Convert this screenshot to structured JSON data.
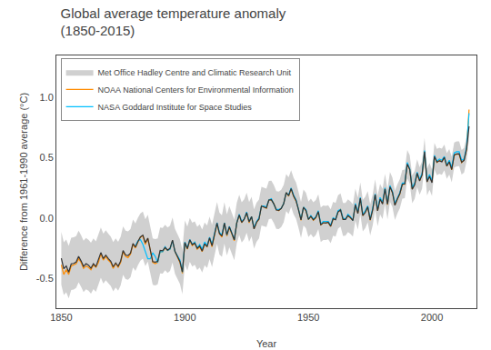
{
  "chart_data": {
    "type": "line",
    "title": "Global average temperature anomaly\n(1850-2015)",
    "xlabel": "Year",
    "ylabel": "Difference from 1961-1990 average (°C)",
    "xlim": [
      1848,
      2018
    ],
    "ylim": [
      -0.75,
      1.35
    ],
    "xticks": [
      1850,
      1900,
      1950,
      2000
    ],
    "yticks": [
      -0.5,
      {
        "value": 0.0,
        "label": "0.0"
      },
      0.5,
      {
        "value": 1.0,
        "label": "1.0"
      }
    ],
    "grid": false,
    "legend": "upper left",
    "x": [
      1850,
      1851,
      1852,
      1853,
      1854,
      1855,
      1856,
      1857,
      1858,
      1859,
      1860,
      1861,
      1862,
      1863,
      1864,
      1865,
      1866,
      1867,
      1868,
      1869,
      1870,
      1871,
      1872,
      1873,
      1874,
      1875,
      1876,
      1877,
      1878,
      1879,
      1880,
      1881,
      1882,
      1883,
      1884,
      1885,
      1886,
      1887,
      1888,
      1889,
      1890,
      1891,
      1892,
      1893,
      1894,
      1895,
      1896,
      1897,
      1898,
      1899,
      1900,
      1901,
      1902,
      1903,
      1904,
      1905,
      1906,
      1907,
      1908,
      1909,
      1910,
      1911,
      1912,
      1913,
      1914,
      1915,
      1916,
      1917,
      1918,
      1919,
      1920,
      1921,
      1922,
      1923,
      1924,
      1925,
      1926,
      1927,
      1928,
      1929,
      1930,
      1931,
      1932,
      1933,
      1934,
      1935,
      1936,
      1937,
      1938,
      1939,
      1940,
      1941,
      1942,
      1943,
      1944,
      1945,
      1946,
      1947,
      1948,
      1949,
      1950,
      1951,
      1952,
      1953,
      1954,
      1955,
      1956,
      1957,
      1958,
      1959,
      1960,
      1961,
      1962,
      1963,
      1964,
      1965,
      1966,
      1967,
      1968,
      1969,
      1970,
      1971,
      1972,
      1973,
      1974,
      1975,
      1976,
      1977,
      1978,
      1979,
      1980,
      1981,
      1982,
      1983,
      1984,
      1985,
      1986,
      1987,
      1988,
      1989,
      1990,
      1991,
      1992,
      1993,
      1994,
      1995,
      1996,
      1997,
      1998,
      1999,
      2000,
      2001,
      2002,
      2003,
      2004,
      2005,
      2006,
      2007,
      2008,
      2009,
      2010,
      2011,
      2012,
      2013,
      2014,
      2015
    ],
    "series": [
      {
        "name": "Met Office Hadley Centre and Climatic Research Unit",
        "type": "band",
        "color": "#AAAAAA",
        "lower": [
          -0.556,
          -0.6413,
          -0.6175,
          -0.6688,
          -0.5991,
          -0.5944,
          -0.5826,
          -0.5349,
          -0.5722,
          -0.6165,
          -0.5927,
          -0.605,
          -0.6293,
          -0.5915,
          -0.6148,
          -0.5601,
          -0.4964,
          -0.5456,
          -0.5169,
          -0.5432,
          -0.5655,
          -0.6107,
          -0.578,
          -0.6043,
          -0.5615,
          -0.4728,
          -0.5091,
          -0.5134,
          -0.4926,
          -0.4119,
          -0.4412,
          -0.3935,
          -0.3557,
          -0.339,
          -0.4013,
          -0.3625,
          -0.4518,
          -0.5561,
          -0.5604,
          -0.5526,
          -0.4609,
          -0.4632,
          -0.4355,
          -0.4567,
          -0.44,
          -0.3713,
          -0.4645,
          -0.5068,
          -0.5471,
          -0.6334,
          -0.3876,
          -0.4379,
          -0.3642,
          -0.4035,
          -0.3897,
          -0.433,
          -0.4123,
          -0.4535,
          -0.3928,
          -0.4161,
          -0.3414,
          -0.4076,
          -0.3159,
          -0.2162,
          -0.3035,
          -0.3237,
          -0.214,
          -0.3123,
          -0.2435,
          -0.3038,
          -0.3511,
          -0.2114,
          -0.1426,
          -0.2039,
          -0.1772,
          -0.1225,
          -0.1977,
          -0.153,
          -0.2543,
          -0.1985,
          -0.1708,
          -0.0631,
          -0.0684,
          -0.0766,
          -0.0099,
          -0.0062,
          -0.0415,
          -0.0907,
          -0.093,
          -0.0763,
          -0.0355,
          0.0572,
          0.0319,
          0.0916,
          0.0304,
          -0.0069,
          -0.0832,
          -0.1665,
          -0.0617,
          -0.086,
          -0.1593,
          -0.1335,
          -0.1618,
          -0.1411,
          -0.0924,
          -0.2006,
          -0.1829,
          -0.1842,
          -0.1775,
          -0.2097,
          -0.147,
          -0.1543,
          -0.0885,
          -0.0718,
          -0.1491,
          -0.1484,
          -0.1166,
          -0.1319,
          -0.1552,
          -0.0235,
          -0.0957,
          0.031,
          -0.1123,
          -0.0855,
          -0.0368,
          -0.1451,
          -0.0624,
          0.0654,
          -0.0679,
          0.0298,
          -0.0095,
          0.1163,
          -0.011,
          0.1347,
          0.0895,
          -0.0168,
          0.0369,
          0.0816,
          0.1594,
          0.1641,
          0.3288,
          0.2855,
          0.1223,
          0.159,
          0.2567,
          0.1925,
          0.2432,
          0.4379,
          0.1866,
          0.2344,
          0.1821,
          0.4018,
          0.3545,
          0.3663,
          0.359,
          0.3957,
          0.3245,
          0.3602,
          0.2969,
          0.4186,
          0.4284,
          0.4301,
          0.3598,
          0.3775,
          0.4713,
          0.662
        ],
        "upper": [
          -0.116,
          -0.2027,
          -0.1805,
          -0.2332,
          -0.1649,
          -0.1616,
          -0.1514,
          -0.1051,
          -0.1438,
          -0.1895,
          -0.1673,
          -0.181,
          -0.2067,
          -0.1705,
          -0.1952,
          -0.1419,
          -0.0796,
          -0.1304,
          -0.1031,
          -0.1308,
          -0.1545,
          -0.2013,
          -0.17,
          -0.1977,
          -0.1565,
          -0.0692,
          -0.1069,
          -0.1126,
          -0.0934,
          -0.0141,
          -0.0448,
          0.0015,
          0.0377,
          0.053,
          -0.0107,
          0.0265,
          -0.0642,
          -0.1699,
          -0.1756,
          -0.1694,
          -0.0791,
          -0.0828,
          -0.0565,
          -0.0793,
          -0.064,
          0.0033,
          -0.0915,
          -0.1352,
          -0.1769,
          -0.2646,
          -0.0204,
          -0.0721,
          0.0002,
          -0.0405,
          -0.0283,
          -0.073,
          -0.0537,
          -0.0965,
          -0.0372,
          -0.0619,
          0.0114,
          -0.0564,
          0.0339,
          0.1322,
          0.0435,
          0.0217,
          0.13,
          0.0303,
          0.0975,
          0.0358,
          -0.0129,
          0.1254,
          0.1926,
          0.1299,
          0.1552,
          0.2085,
          0.1317,
          0.175,
          0.0723,
          0.1265,
          0.1528,
          0.2591,
          0.2524,
          0.2426,
          0.3079,
          0.3102,
          0.2735,
          0.2227,
          0.219,
          0.2343,
          0.2735,
          0.3648,
          0.3381,
          0.3964,
          0.3336,
          0.2949,
          0.2172,
          0.1325,
          0.2357,
          0.21,
          0.1353,
          0.1595,
          0.1298,
          0.1491,
          0.1964,
          0.0866,
          0.1029,
          0.1002,
          0.1055,
          0.0717,
          0.133,
          0.1243,
          0.1885,
          0.2038,
          0.1251,
          0.1244,
          0.1546,
          0.1379,
          0.1132,
          0.2435,
          0.1697,
          0.295,
          0.1503,
          0.1755,
          0.2228,
          0.1131,
          0.1944,
          0.3206,
          0.1859,
          0.2822,
          0.2415,
          0.3657,
          0.237,
          0.3813,
          0.3345,
          0.2268,
          0.2791,
          0.3224,
          0.3986,
          0.4019,
          0.5652,
          0.5205,
          0.3557,
          0.391,
          0.4873,
          0.4215,
          0.4708,
          0.6641,
          0.4114,
          0.4576,
          0.4039,
          0.6222,
          0.5735,
          0.5837,
          0.575,
          0.6103,
          0.5375,
          0.5718,
          0.5071,
          0.6274,
          0.6356,
          0.6359,
          0.5642,
          0.5805,
          0.6727,
          0.862
        ]
      },
      {
        "name": "NOAA National Centers for Environmental Information",
        "type": "line",
        "color": "#FF8C00",
        "values": [
          -0.39,
          -0.47,
          -0.43,
          -0.47,
          -0.4,
          -0.39,
          -0.38,
          -0.34,
          -0.37,
          -0.42,
          -0.4,
          -0.41,
          -0.43,
          -0.39,
          -0.41,
          -0.37,
          -0.3,
          -0.35,
          -0.32,
          -0.35,
          -0.37,
          -0.42,
          -0.38,
          -0.41,
          -0.37,
          -0.28,
          -0.32,
          -0.33,
          -0.3,
          -0.22,
          -0.25,
          -0.2,
          -0.16,
          -0.15,
          -0.22,
          -0.17,
          -0.26,
          -0.37,
          -0.38,
          -0.37,
          -0.28,
          -0.28,
          -0.25,
          -0.27,
          -0.26,
          -0.19,
          -0.28,
          -0.33,
          -0.37,
          -0.46,
          -0.21,
          -0.26,
          -0.19,
          -0.23,
          -0.21,
          -0.26,
          -0.24,
          -0.28,
          -0.22,
          -0.24,
          -0.17,
          -0.24,
          -0.15,
          -0.05,
          -0.13,
          -0.16,
          -0.04,
          -0.15,
          -0.08,
          -0.14,
          -0.19,
          -0.04,
          0.02,
          -0.04,
          -0.01,
          0.04,
          -0.04,
          0.01,
          -0.09,
          -0.04,
          -0.01,
          0.1,
          0.09,
          0.08,
          0.15,
          0.15,
          0.12,
          0.07,
          0.06,
          0.08,
          0.12,
          0.21,
          0.18,
          0.24,
          0.18,
          0.14,
          0.07,
          -0.02,
          0.09,
          0.06,
          -0.01,
          0.01,
          -0.02,
          0.0,
          0.05,
          -0.06,
          -0.04,
          -0.04,
          -0.04,
          -0.07,
          -0.01,
          -0.01,
          0.05,
          0.07,
          -0.01,
          -0.01,
          0.02,
          0.0,
          -0.02,
          0.11,
          0.04,
          0.16,
          0.02,
          0.05,
          0.09,
          -0.02,
          0.07,
          0.19,
          0.06,
          0.16,
          0.12,
          0.24,
          0.11,
          0.26,
          0.21,
          0.11,
          0.16,
          0.2,
          0.28,
          0.28,
          0.45,
          0.4,
          0.24,
          0.28,
          0.37,
          0.31,
          0.36,
          0.55,
          0.3,
          0.35,
          0.3,
          0.51,
          0.46,
          0.48,
          0.47,
          0.5,
          0.43,
          0.47,
          0.4,
          0.52,
          0.53,
          0.53,
          0.46,
          0.48,
          0.57,
          0.9
        ]
      },
      {
        "name": "NASA Goddard Institute for Space Studies",
        "type": "line",
        "color": "#00BFFF",
        "values": [
          null,
          null,
          null,
          null,
          null,
          null,
          null,
          null,
          null,
          null,
          null,
          null,
          null,
          null,
          null,
          null,
          null,
          null,
          null,
          null,
          null,
          null,
          null,
          null,
          null,
          null,
          null,
          null,
          null,
          null,
          -0.23,
          -0.19,
          -0.18,
          -0.22,
          -0.28,
          -0.34,
          -0.34,
          -0.29,
          -0.32,
          -0.37,
          -0.28,
          -0.28,
          -0.24,
          -0.27,
          -0.26,
          -0.19,
          -0.28,
          -0.32,
          -0.35,
          -0.45,
          -0.2,
          -0.25,
          -0.18,
          -0.22,
          -0.2,
          -0.25,
          -0.22,
          -0.26,
          -0.2,
          -0.23,
          -0.16,
          -0.22,
          -0.13,
          -0.04,
          -0.12,
          -0.14,
          -0.04,
          -0.14,
          -0.07,
          -0.13,
          -0.18,
          -0.04,
          0.03,
          -0.03,
          -0.01,
          0.05,
          -0.03,
          0.01,
          -0.08,
          -0.03,
          0.0,
          0.1,
          0.1,
          0.09,
          0.15,
          0.16,
          0.12,
          0.07,
          0.07,
          0.08,
          0.12,
          0.21,
          0.19,
          0.25,
          0.19,
          0.15,
          0.07,
          -0.01,
          0.09,
          0.07,
          -0.01,
          0.02,
          -0.01,
          0.01,
          0.06,
          -0.05,
          -0.03,
          -0.03,
          -0.03,
          -0.06,
          0.0,
          -0.01,
          0.06,
          0.07,
          0.0,
          -0.01,
          0.03,
          0.01,
          -0.02,
          0.12,
          0.05,
          0.17,
          0.03,
          0.06,
          0.1,
          -0.01,
          0.08,
          0.2,
          0.07,
          0.17,
          0.13,
          0.25,
          0.12,
          0.27,
          0.22,
          0.12,
          0.17,
          0.21,
          0.29,
          0.29,
          0.46,
          0.41,
          0.25,
          0.29,
          0.38,
          0.32,
          0.37,
          0.56,
          0.31,
          0.36,
          0.31,
          0.52,
          0.47,
          0.49,
          0.48,
          0.51,
          0.44,
          0.48,
          0.42,
          0.54,
          0.55,
          0.55,
          0.48,
          0.49,
          0.59,
          0.87
        ]
      },
      {
        "type": "line",
        "color": "#333333",
        "values": [
          -0.336,
          -0.422,
          -0.399,
          -0.451,
          -0.382,
          -0.378,
          -0.367,
          -0.32,
          -0.358,
          -0.403,
          -0.38,
          -0.393,
          -0.418,
          -0.381,
          -0.405,
          -0.351,
          -0.288,
          -0.338,
          -0.31,
          -0.337,
          -0.36,
          -0.406,
          -0.374,
          -0.401,
          -0.359,
          -0.271,
          -0.308,
          -0.313,
          -0.293,
          -0.213,
          -0.243,
          -0.196,
          -0.159,
          -0.143,
          -0.206,
          -0.168,
          -0.258,
          -0.363,
          -0.368,
          -0.361,
          -0.27,
          -0.273,
          -0.246,
          -0.268,
          -0.252,
          -0.184,
          -0.278,
          -0.321,
          -0.362,
          -0.449,
          -0.204,
          -0.255,
          -0.182,
          -0.222,
          -0.209,
          -0.253,
          -0.233,
          -0.275,
          -0.215,
          -0.239,
          -0.165,
          -0.232,
          -0.141,
          -0.042,
          -0.13,
          -0.151,
          -0.042,
          -0.141,
          -0.073,
          -0.134,
          -0.182,
          -0.043,
          0.025,
          -0.037,
          -0.011,
          0.043,
          -0.033,
          0.011,
          -0.091,
          -0.036,
          -0.009,
          0.098,
          0.092,
          0.083,
          0.149,
          0.152,
          0.116,
          0.066,
          0.063,
          0.079,
          0.119,
          0.211,
          0.185,
          0.244,
          0.182,
          0.144,
          0.067,
          -0.017,
          0.087,
          0.062,
          -0.012,
          0.013,
          -0.016,
          0.004,
          0.052,
          -0.057,
          -0.04,
          -0.042,
          -0.036,
          -0.069,
          -0.007,
          -0.015,
          0.05,
          0.066,
          -0.012,
          -0.012,
          0.019,
          0.003,
          -0.021,
          0.11,
          0.037,
          0.163,
          0.019,
          0.045,
          0.093,
          -0.016,
          0.066,
          0.193,
          0.059,
          0.156,
          0.116,
          0.241,
          0.113,
          0.258,
          0.212,
          0.105,
          0.158,
          0.202,
          0.279,
          0.283,
          0.447,
          0.403,
          0.239,
          0.275,
          0.372,
          0.307,
          0.357,
          0.551,
          0.299,
          0.346,
          0.293,
          0.512,
          0.464,
          0.475,
          0.467,
          0.503,
          0.431,
          0.466,
          0.402,
          0.523,
          0.532,
          0.533,
          0.462,
          0.479,
          0.572,
          0.762
        ]
      }
    ]
  }
}
